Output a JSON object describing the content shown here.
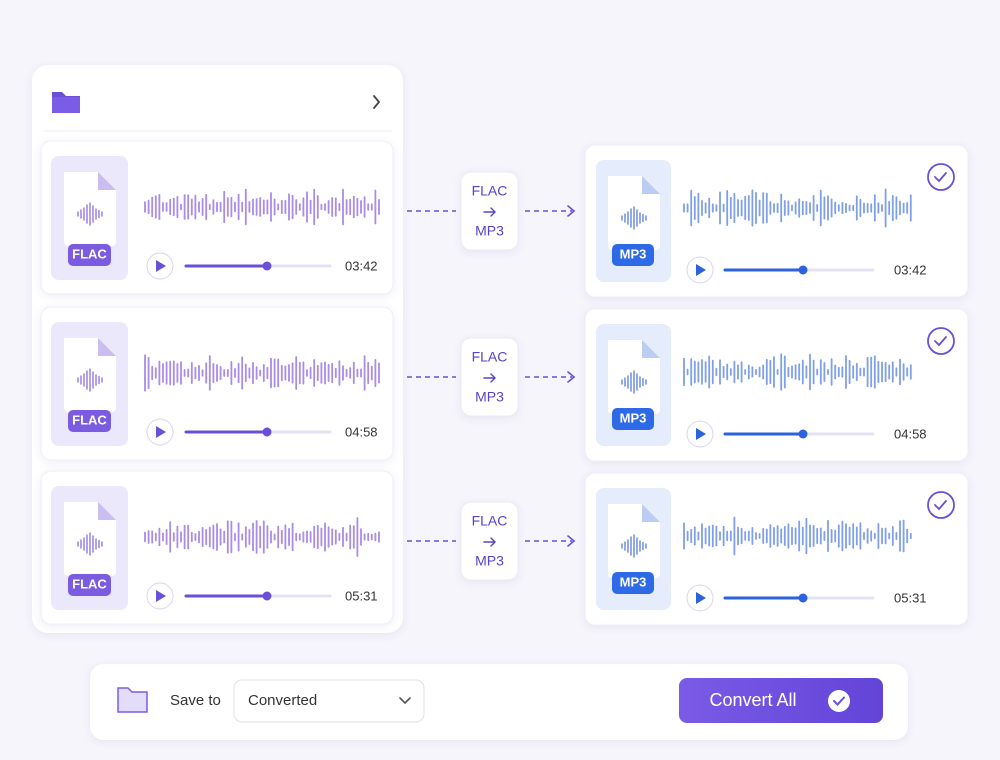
{
  "source_files": [
    {
      "format": "FLAC",
      "duration": "03:42"
    },
    {
      "format": "FLAC",
      "duration": "04:58"
    },
    {
      "format": "FLAC",
      "duration": "05:31"
    }
  ],
  "conversions": [
    {
      "from": "FLAC",
      "to": "MP3"
    },
    {
      "from": "FLAC",
      "to": "MP3"
    },
    {
      "from": "FLAC",
      "to": "MP3"
    }
  ],
  "output_files": [
    {
      "format": "MP3",
      "duration": "03:42"
    },
    {
      "format": "MP3",
      "duration": "04:58"
    },
    {
      "format": "MP3",
      "duration": "05:31"
    }
  ],
  "footer": {
    "save_to_label": "Save to",
    "destination": "Converted",
    "button": "Convert All"
  }
}
